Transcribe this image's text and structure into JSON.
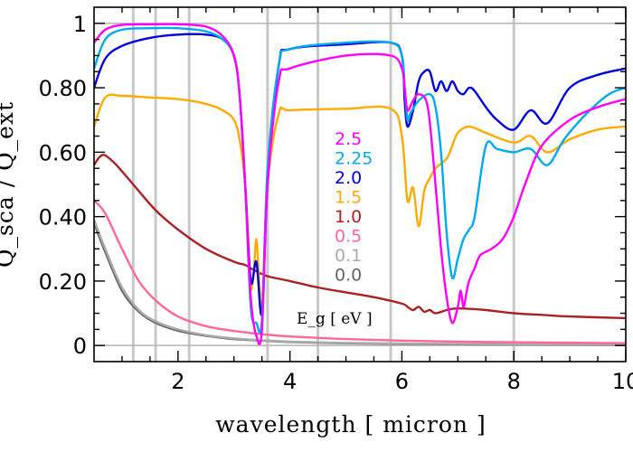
{
  "chart_data": {
    "type": "line",
    "xlabel": "wavelength [ micron ]",
    "ylabel": "Q_sca / Q_ext",
    "xlim": [
      0.5,
      10
    ],
    "ylim": [
      -0.05,
      1.05
    ],
    "x_ticks": [
      2,
      4,
      6,
      8,
      10
    ],
    "x_tick_labels": [
      "2",
      "4",
      "6",
      "8",
      "10"
    ],
    "y_ticks": [
      0,
      0.2,
      0.4,
      0.6,
      0.8,
      1
    ],
    "y_tick_labels": [
      "0",
      "0.20",
      "0.40",
      "0.60",
      "0.80",
      "1"
    ],
    "reference_lines": {
      "horizontal_y": [
        0,
        1
      ],
      "vertical_x": [
        1.2,
        1.6,
        2.2,
        3.6,
        4.5,
        5.8,
        8.0
      ]
    },
    "legend_title": "E_g [ eV ]",
    "legend_placement": "center",
    "series": [
      {
        "name": "2.5",
        "color": "#ff00ff",
        "x": [
          0.5,
          0.7,
          1.0,
          1.5,
          2.0,
          2.5,
          2.8,
          3.0,
          3.1,
          3.2,
          3.3,
          3.4,
          3.5,
          3.6,
          3.8,
          4.0,
          5.0,
          5.8,
          6.0,
          6.05,
          6.1,
          6.2,
          6.3,
          6.45,
          6.55,
          6.7,
          6.8,
          6.9,
          7.0,
          7.05,
          7.1,
          7.15,
          7.2,
          7.3,
          7.4,
          7.6,
          7.8,
          8.0,
          8.2,
          8.5,
          9.0,
          9.5,
          10.0
        ],
        "y": [
          0.94,
          0.98,
          0.995,
          0.997,
          0.997,
          0.99,
          0.96,
          0.9,
          0.78,
          0.5,
          0.15,
          0.03,
          0.05,
          0.5,
          0.82,
          0.86,
          0.9,
          0.9,
          0.86,
          0.8,
          0.73,
          0.76,
          0.78,
          0.75,
          0.6,
          0.3,
          0.15,
          0.07,
          0.12,
          0.17,
          0.12,
          0.16,
          0.2,
          0.24,
          0.28,
          0.3,
          0.33,
          0.4,
          0.5,
          0.62,
          0.7,
          0.74,
          0.765
        ]
      },
      {
        "name": "2.25",
        "color": "#00aaee",
        "x": [
          0.5,
          0.7,
          1.0,
          1.5,
          2.0,
          2.5,
          2.8,
          3.0,
          3.1,
          3.2,
          3.3,
          3.4,
          3.5,
          3.6,
          3.8,
          4.0,
          5.0,
          5.8,
          6.0,
          6.05,
          6.1,
          6.15,
          6.3,
          6.5,
          6.6,
          6.7,
          6.8,
          6.9,
          7.0,
          7.1,
          7.2,
          7.3,
          7.5,
          7.7,
          8.0,
          8.3,
          8.6,
          8.9,
          9.3,
          9.7,
          10.0
        ],
        "y": [
          0.86,
          0.95,
          0.98,
          0.985,
          0.985,
          0.975,
          0.95,
          0.9,
          0.78,
          0.5,
          0.12,
          0.07,
          0.08,
          0.55,
          0.87,
          0.92,
          0.94,
          0.94,
          0.9,
          0.8,
          0.7,
          0.72,
          0.76,
          0.78,
          0.74,
          0.6,
          0.35,
          0.21,
          0.27,
          0.33,
          0.36,
          0.4,
          0.62,
          0.61,
          0.6,
          0.61,
          0.56,
          0.64,
          0.72,
          0.78,
          0.8
        ]
      },
      {
        "name": "2.0",
        "color": "#0000dd",
        "x": [
          0.5,
          0.7,
          1.0,
          1.5,
          2.0,
          2.5,
          2.8,
          3.0,
          3.1,
          3.2,
          3.3,
          3.4,
          3.5,
          3.6,
          3.8,
          4.0,
          5.0,
          5.8,
          6.0,
          6.05,
          6.1,
          6.2,
          6.3,
          6.4,
          6.5,
          6.6,
          6.7,
          6.8,
          6.9,
          7.0,
          7.1,
          7.2,
          7.3,
          7.5,
          7.7,
          8.0,
          8.3,
          8.6,
          9.0,
          9.5,
          10.0
        ],
        "y": [
          0.8,
          0.89,
          0.93,
          0.955,
          0.965,
          0.965,
          0.95,
          0.9,
          0.78,
          0.5,
          0.2,
          0.26,
          0.1,
          0.5,
          0.87,
          0.92,
          0.935,
          0.94,
          0.9,
          0.76,
          0.68,
          0.73,
          0.82,
          0.85,
          0.85,
          0.79,
          0.82,
          0.79,
          0.82,
          0.79,
          0.78,
          0.8,
          0.79,
          0.74,
          0.7,
          0.67,
          0.73,
          0.69,
          0.8,
          0.84,
          0.86
        ]
      },
      {
        "name": "1.5",
        "color": "#ffaa00",
        "x": [
          0.5,
          0.7,
          1.0,
          1.5,
          2.0,
          2.5,
          2.8,
          3.0,
          3.1,
          3.2,
          3.25,
          3.3,
          3.35,
          3.4,
          3.45,
          3.5,
          3.6,
          3.8,
          4.0,
          5.0,
          5.8,
          6.0,
          6.1,
          6.2,
          6.3,
          6.4,
          6.5,
          6.6,
          6.8,
          6.9,
          7.0,
          7.2,
          7.5,
          8.0,
          8.3,
          8.6,
          9.0,
          9.5,
          10.0
        ],
        "y": [
          0.68,
          0.77,
          0.775,
          0.77,
          0.765,
          0.75,
          0.73,
          0.7,
          0.64,
          0.5,
          0.35,
          0.18,
          0.22,
          0.33,
          0.2,
          0.12,
          0.5,
          0.72,
          0.73,
          0.735,
          0.735,
          0.65,
          0.45,
          0.49,
          0.37,
          0.48,
          0.52,
          0.55,
          0.58,
          0.62,
          0.66,
          0.68,
          0.66,
          0.63,
          0.65,
          0.6,
          0.64,
          0.67,
          0.68
        ]
      },
      {
        "name": "1.0",
        "color": "#aa2222",
        "x": [
          0.5,
          0.6,
          0.7,
          0.9,
          1.2,
          1.6,
          2.0,
          2.5,
          3.0,
          3.2,
          3.3,
          3.4,
          3.6,
          4.0,
          4.5,
          5.0,
          5.5,
          6.0,
          6.1,
          6.2,
          6.3,
          6.4,
          6.5,
          6.6,
          6.8,
          7.0,
          7.5,
          8.0,
          8.5,
          9.0,
          10.0
        ],
        "y": [
          0.56,
          0.585,
          0.59,
          0.56,
          0.5,
          0.42,
          0.36,
          0.3,
          0.26,
          0.25,
          0.24,
          0.23,
          0.215,
          0.2,
          0.18,
          0.165,
          0.15,
          0.13,
          0.12,
          0.11,
          0.12,
          0.105,
          0.11,
          0.1,
          0.11,
          0.115,
          0.11,
          0.1,
          0.095,
          0.09,
          0.085
        ]
      },
      {
        "name": "0.5",
        "color": "#ff6699",
        "x": [
          0.5,
          0.7,
          1.0,
          1.3,
          1.6,
          2.0,
          2.5,
          3.0,
          3.5,
          4.0,
          5.0,
          6.0,
          7.0,
          8.0,
          10.0
        ],
        "y": [
          0.45,
          0.41,
          0.3,
          0.2,
          0.14,
          0.09,
          0.06,
          0.045,
          0.035,
          0.028,
          0.02,
          0.015,
          0.012,
          0.01,
          0.007
        ]
      },
      {
        "name": "0.1",
        "color": "#aaaaaa",
        "x": [
          0.5,
          0.7,
          1.0,
          1.3,
          1.6,
          2.0,
          2.5,
          3.0,
          3.5,
          4.0,
          5.0,
          6.0,
          8.0,
          10.0
        ],
        "y": [
          0.39,
          0.3,
          0.18,
          0.11,
          0.075,
          0.05,
          0.032,
          0.022,
          0.016,
          0.012,
          0.008,
          0.006,
          0.004,
          0.003
        ]
      },
      {
        "name": "0.0",
        "color": "#666666",
        "x": [
          0.5,
          0.7,
          1.0,
          1.3,
          1.6,
          2.0,
          2.5,
          3.0,
          3.5,
          4.0,
          5.0,
          6.0,
          8.0,
          10.0
        ],
        "y": [
          0.38,
          0.29,
          0.17,
          0.105,
          0.07,
          0.046,
          0.03,
          0.02,
          0.015,
          0.011,
          0.007,
          0.005,
          0.003,
          0.002
        ]
      }
    ]
  }
}
